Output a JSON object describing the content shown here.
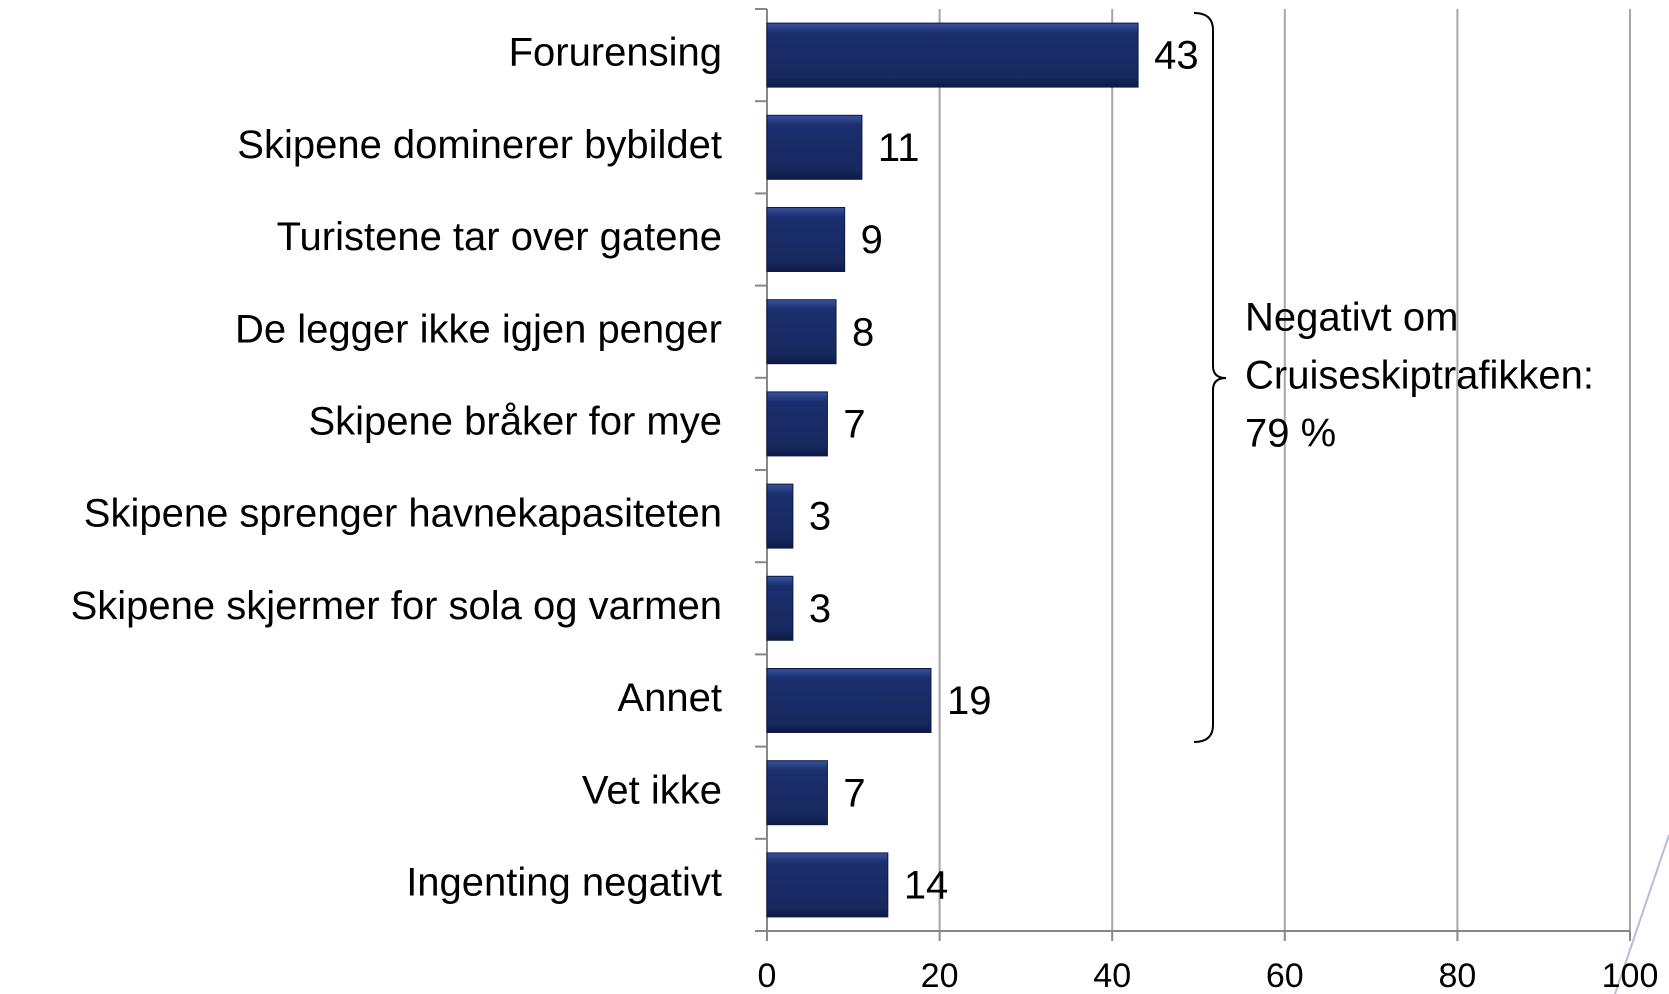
{
  "chart_data": {
    "type": "bar",
    "orientation": "horizontal",
    "categories": [
      "Forurensing",
      "Skipene dominerer bybildet",
      "Turistene tar over gatene",
      "De legger ikke igjen penger",
      "Skipene bråker for mye",
      "Skipene sprenger havnekapasiteten",
      "Skipene skjermer for sola og varmen",
      "Annet",
      "Vet ikke",
      "Ingenting negativt"
    ],
    "values": [
      43,
      11,
      9,
      8,
      7,
      3,
      3,
      19,
      7,
      14
    ],
    "color": "#1b2f6e",
    "xlim": [
      0,
      100
    ],
    "xticks": [
      0,
      20,
      40,
      60,
      80,
      100
    ],
    "grid": true,
    "annotation": [
      "Negativt om",
      "Cruiseskiptrafikken:",
      "79 %"
    ]
  }
}
